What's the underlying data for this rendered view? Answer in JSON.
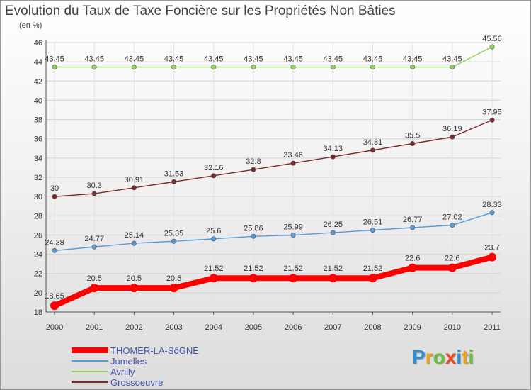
{
  "chart_data": {
    "type": "line",
    "title": "Evolution du Taux de Taxe Foncière sur les Propriétés Non Bâties",
    "ylabel": "(en %)",
    "xlabel": "",
    "x": [
      "2000",
      "2001",
      "2002",
      "2003",
      "2004",
      "2005",
      "2006",
      "2007",
      "2008",
      "2009",
      "2010",
      "2011"
    ],
    "ylim": [
      18,
      46
    ],
    "yticks": [
      18,
      20,
      22,
      24,
      26,
      28,
      30,
      32,
      34,
      36,
      38,
      40,
      42,
      44,
      46
    ],
    "grid": true,
    "legend_position": "bottom-left",
    "series": [
      {
        "name": "THOMER-LA-SôGNE",
        "color": "#ff0000",
        "values": [
          18.65,
          20.5,
          20.5,
          20.5,
          21.52,
          21.52,
          21.52,
          21.52,
          21.52,
          22.6,
          22.6,
          23.7
        ],
        "labels": [
          "18.65",
          "20.5",
          "20.5",
          "20.5",
          "21.52",
          "21.52",
          "21.52",
          "21.52",
          "21.52",
          "22.6",
          "22.6",
          "23.7"
        ]
      },
      {
        "name": "Jumelles",
        "color": "#5b9bd5",
        "values": [
          24.38,
          24.77,
          25.14,
          25.35,
          25.6,
          25.86,
          25.99,
          26.25,
          26.51,
          26.77,
          27.02,
          28.33
        ],
        "labels": [
          "24.38",
          "24.77",
          "25.14",
          "25.35",
          "25.6",
          "25.86",
          "25.99",
          "26.25",
          "26.51",
          "26.77",
          "27.02",
          "28.33"
        ]
      },
      {
        "name": "Avrilly",
        "color": "#8fd35a",
        "values": [
          43.45,
          43.45,
          43.45,
          43.45,
          43.45,
          43.45,
          43.45,
          43.45,
          43.45,
          43.45,
          43.45,
          45.56
        ],
        "labels": [
          "43.45",
          "43.45",
          "43.45",
          "43.45",
          "43.45",
          "43.45",
          "43.45",
          "43.45",
          "43.45",
          "43.45",
          "43.45",
          "45.56"
        ]
      },
      {
        "name": "Grossoeuvre",
        "color": "#7a2a2a",
        "values": [
          30,
          30.3,
          30.91,
          31.53,
          32.16,
          32.8,
          33.46,
          34.13,
          34.81,
          35.5,
          36.19,
          37.95
        ],
        "labels": [
          "30",
          "30.3",
          "30.91",
          "31.53",
          "32.16",
          "32.8",
          "33.46",
          "34.13",
          "34.81",
          "35.5",
          "36.19",
          "37.95"
        ]
      }
    ]
  },
  "brand": {
    "letters": [
      "P",
      "r",
      "o",
      "x",
      "i",
      "t",
      "i"
    ],
    "colors": [
      "#2d8fd6",
      "#e8a21a",
      "#6cbf3a",
      "#e84a1a",
      "#2d8fd6",
      "#e8a21a",
      "#6cbf3a"
    ]
  }
}
